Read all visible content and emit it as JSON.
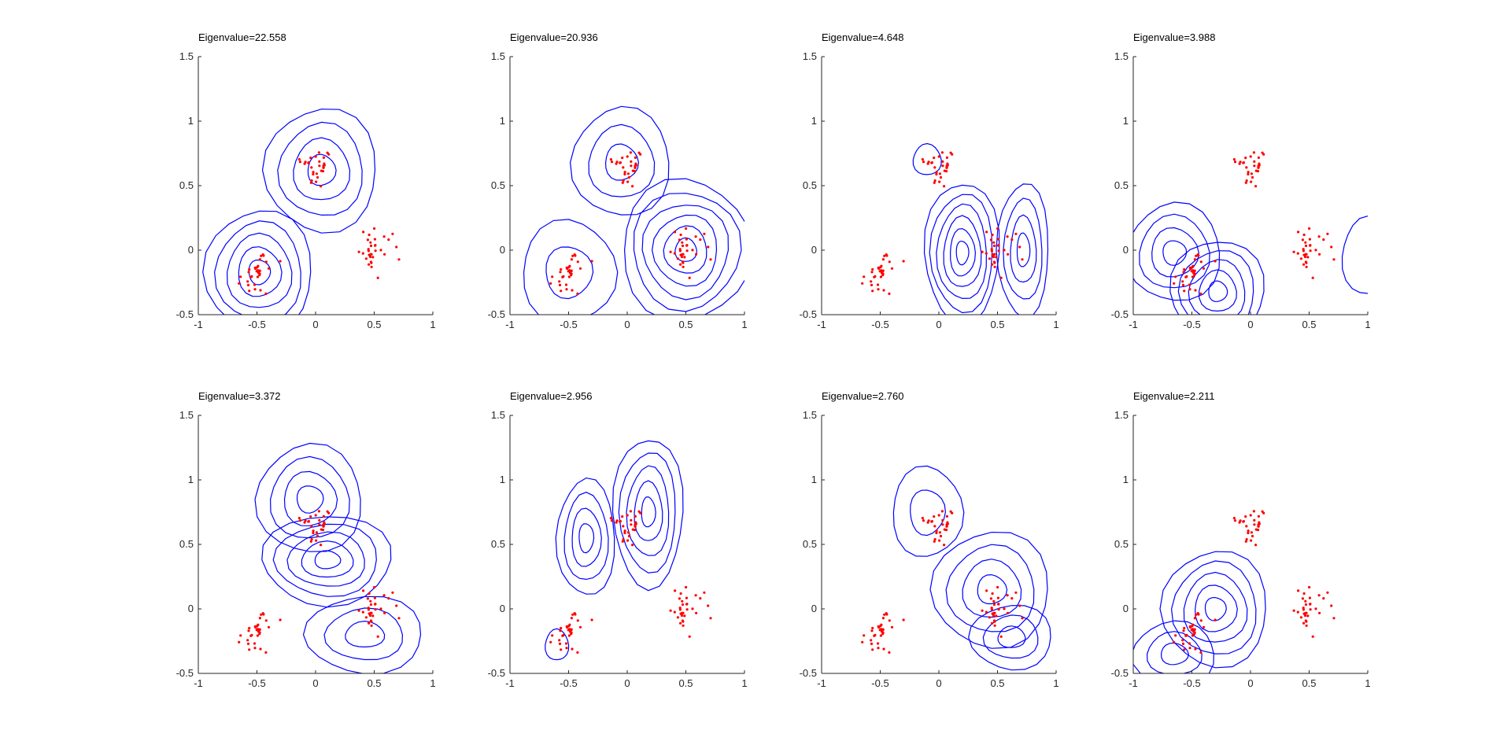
{
  "figure": {
    "background": "#ffffff",
    "contour_color": "#0000ff",
    "point_color": "#ff0000",
    "axis_color": "#262626"
  },
  "chart_data": [
    {
      "type": "contour",
      "title": "Eigenvalue=22.558",
      "xlim": [
        -1,
        1
      ],
      "ylim": [
        -0.5,
        1.5
      ],
      "xticks": [
        "-1",
        "-0.5",
        "0",
        "0.5",
        "1"
      ],
      "yticks": [
        "-0.5",
        "0",
        "0.5",
        "1",
        "1.5"
      ],
      "grid": false,
      "lobes": [
        {
          "center": [
            -0.48,
            -0.17
          ],
          "rx": 0.46,
          "ry": 0.48,
          "levels": 5
        },
        {
          "center": [
            0.05,
            0.62
          ],
          "rx": 0.48,
          "ry": 0.48,
          "levels": 4
        }
      ]
    },
    {
      "type": "contour",
      "title": "Eigenvalue=20.936",
      "xlim": [
        -1,
        1
      ],
      "ylim": [
        -0.5,
        1.5
      ],
      "xticks": [
        "-1",
        "-0.5",
        "0",
        "0.5",
        "1"
      ],
      "yticks": [
        "-0.5",
        "0",
        "0.5",
        "1",
        "1.5"
      ],
      "grid": false,
      "lobes": [
        {
          "center": [
            -0.5,
            -0.17
          ],
          "rx": 0.4,
          "ry": 0.4,
          "levels": 2
        },
        {
          "center": [
            -0.05,
            0.68
          ],
          "rx": 0.42,
          "ry": 0.42,
          "levels": 3
        },
        {
          "center": [
            0.5,
            0.0
          ],
          "rx": 0.55,
          "ry": 0.55,
          "levels": 6
        }
      ]
    },
    {
      "type": "contour",
      "title": "Eigenvalue=4.648",
      "xlim": [
        -1,
        1
      ],
      "ylim": [
        -0.5,
        1.5
      ],
      "xticks": [
        "-1",
        "-0.5",
        "0",
        "0.5",
        "1"
      ],
      "yticks": [
        "-0.5",
        "0",
        "0.5",
        "1",
        "1.5"
      ],
      "grid": false,
      "lobes": [
        {
          "center": [
            0.2,
            -0.02
          ],
          "rx": 0.32,
          "ry": 0.55,
          "levels": 6
        },
        {
          "center": [
            0.72,
            0.0
          ],
          "rx": 0.22,
          "ry": 0.52,
          "levels": 4
        },
        {
          "center": [
            -0.1,
            0.7
          ],
          "rx": 0.12,
          "ry": 0.12,
          "levels": 1
        }
      ]
    },
    {
      "type": "contour",
      "title": "Eigenvalue=3.988",
      "xlim": [
        -1,
        1
      ],
      "ylim": [
        -0.5,
        1.5
      ],
      "xticks": [
        "-1",
        "-0.5",
        "0",
        "0.5",
        "1"
      ],
      "yticks": [
        "-0.5",
        "0",
        "0.5",
        "1",
        "1.5"
      ],
      "grid": false,
      "lobes": [
        {
          "center": [
            -0.65,
            -0.02
          ],
          "rx": 0.4,
          "ry": 0.38,
          "levels": 4
        },
        {
          "center": [
            -0.28,
            -0.32
          ],
          "rx": 0.4,
          "ry": 0.4,
          "levels": 5
        },
        {
          "center": [
            1.0,
            -0.05
          ],
          "rx": 0.22,
          "ry": 0.3,
          "levels": 1
        }
      ]
    },
    {
      "type": "contour",
      "title": "Eigenvalue=3.372",
      "xlim": [
        -1,
        1
      ],
      "ylim": [
        -0.5,
        1.5
      ],
      "xticks": [
        "-1",
        "-0.5",
        "0",
        "0.5",
        "1"
      ],
      "yticks": [
        "-0.5",
        "0",
        "0.5",
        "1",
        "1.5"
      ],
      "grid": false,
      "lobes": [
        {
          "center": [
            -0.05,
            0.85
          ],
          "rx": 0.45,
          "ry": 0.42,
          "levels": 4
        },
        {
          "center": [
            0.1,
            0.38
          ],
          "rx": 0.55,
          "ry": 0.35,
          "levels": 5
        },
        {
          "center": [
            0.42,
            -0.2
          ],
          "rx": 0.5,
          "ry": 0.3,
          "levels": 3
        }
      ]
    },
    {
      "type": "contour",
      "title": "Eigenvalue=2.956",
      "xlim": [
        -1,
        1
      ],
      "ylim": [
        -0.5,
        1.5
      ],
      "xticks": [
        "-1",
        "-0.5",
        "0",
        "0.5",
        "1"
      ],
      "yticks": [
        "-0.5",
        "0",
        "0.5",
        "1",
        "1.5"
      ],
      "grid": false,
      "lobes": [
        {
          "center": [
            -0.35,
            0.55
          ],
          "rx": 0.25,
          "ry": 0.45,
          "levels": 4
        },
        {
          "center": [
            0.18,
            0.75
          ],
          "rx": 0.3,
          "ry": 0.58,
          "levels": 5
        },
        {
          "center": [
            -0.6,
            -0.28
          ],
          "rx": 0.1,
          "ry": 0.12,
          "levels": 1
        }
      ]
    },
    {
      "type": "contour",
      "title": "Eigenvalue=2.760",
      "xlim": [
        -1,
        1
      ],
      "ylim": [
        -0.5,
        1.5
      ],
      "xticks": [
        "-1",
        "-0.5",
        "0",
        "0.5",
        "1"
      ],
      "yticks": [
        "-0.5",
        "0",
        "0.5",
        "1",
        "1.5"
      ],
      "grid": false,
      "lobes": [
        {
          "center": [
            -0.1,
            0.75
          ],
          "rx": 0.3,
          "ry": 0.35,
          "levels": 2
        },
        {
          "center": [
            0.45,
            0.15
          ],
          "rx": 0.5,
          "ry": 0.45,
          "levels": 4
        },
        {
          "center": [
            0.62,
            -0.22
          ],
          "rx": 0.35,
          "ry": 0.25,
          "levels": 3
        }
      ]
    },
    {
      "type": "contour",
      "title": "Eigenvalue=2.211",
      "xlim": [
        -1,
        1
      ],
      "ylim": [
        -0.5,
        1.5
      ],
      "xticks": [
        "-1",
        "-0.5",
        "0",
        "0.5",
        "1"
      ],
      "yticks": [
        "-0.5",
        "0",
        "0.5",
        "1",
        "1.5"
      ],
      "grid": false,
      "lobes": [
        {
          "center": [
            -0.3,
            0.0
          ],
          "rx": 0.45,
          "ry": 0.45,
          "levels": 5
        },
        {
          "center": [
            -0.65,
            -0.35
          ],
          "rx": 0.35,
          "ry": 0.25,
          "levels": 3
        }
      ]
    }
  ]
}
